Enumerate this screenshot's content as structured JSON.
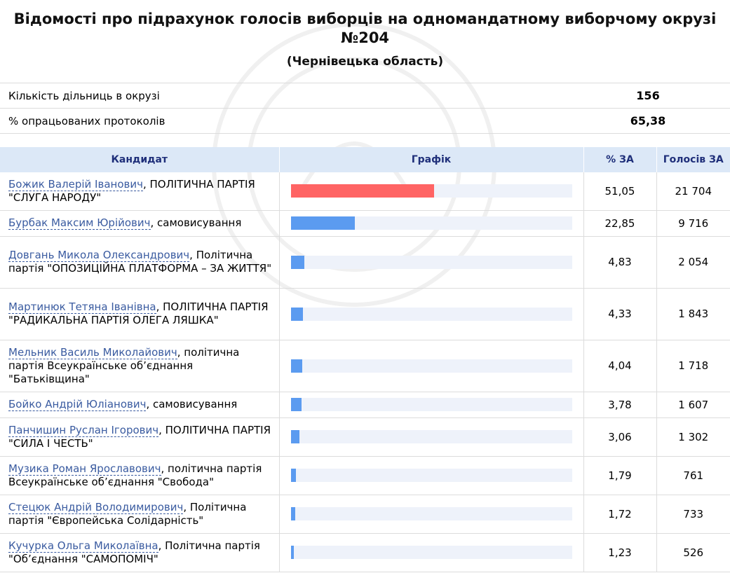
{
  "header": {
    "title": "Відомості про підрахунок голосів виборців на одномандатному виборчому окрузі №204",
    "region": "(Чернівецька область)"
  },
  "summary": [
    {
      "label": "Кількість дільниць в окрузі",
      "value": "156"
    },
    {
      "label": "% опрацьованих протоколів",
      "value": "65,38"
    }
  ],
  "table_headers": {
    "candidate": "Кандидат",
    "chart": "Графік",
    "percent": "% ЗА",
    "votes": "Голосів ЗА"
  },
  "colors": {
    "lead_bar": "#ff6464",
    "bar": "#5b9bf0",
    "track": "#eef2fa",
    "header_bg": "#dce8f7",
    "link": "#3a5ba0"
  },
  "candidates": [
    {
      "name": "Божик Валерій Іванович",
      "party": ", ПОЛІТИЧНА ПАРТІЯ \"СЛУГА НАРОДУ\"",
      "percent": "51,05",
      "votes": "21 704",
      "share": 51.05
    },
    {
      "name": "Бурбак Максим Юрійович",
      "party": ", самовисування",
      "percent": "22,85",
      "votes": "9 716",
      "share": 22.85
    },
    {
      "name": "Довгань Микола Олександрович",
      "party": ", Політична партія \"ОПОЗИЦІЙНА ПЛАТФОРМА – ЗА ЖИТТЯ\"",
      "percent": "4,83",
      "votes": "2 054",
      "share": 4.83
    },
    {
      "name": "Мартинюк Тетяна Іванівна",
      "party": ", ПОЛІТИЧНА ПАРТІЯ \"РАДИКАЛЬНА ПАРТІЯ ОЛЕГА ЛЯШКА\"",
      "percent": "4,33",
      "votes": "1 843",
      "share": 4.33
    },
    {
      "name": "Мельник Василь Миколайович",
      "party": ", політична партія Всеукраїнське об’єднання \"Батьківщина\"",
      "percent": "4,04",
      "votes": "1 718",
      "share": 4.04
    },
    {
      "name": "Бойко Андрій Юліанович",
      "party": ", самовисування",
      "percent": "3,78",
      "votes": "1 607",
      "share": 3.78
    },
    {
      "name": "Панчишин Руслан Ігорович",
      "party": ", ПОЛІТИЧНА ПАРТІЯ \"СИЛА І ЧЕСТЬ\"",
      "percent": "3,06",
      "votes": "1 302",
      "share": 3.06
    },
    {
      "name": "Музика Роман Ярославович",
      "party": ", політична партія Всеукраїнське об’єднання \"Свобода\"",
      "percent": "1,79",
      "votes": "761",
      "share": 1.79
    },
    {
      "name": "Стецюк Андрій Володимирович",
      "party": ", Політична партія \"Європейська Солідарність\"",
      "percent": "1,72",
      "votes": "733",
      "share": 1.72
    },
    {
      "name": "Кучурка Ольга Миколаївна",
      "party": ", Політична партія \"Об’єднання \"САМОПОМІЧ\"",
      "percent": "1,23",
      "votes": "526",
      "share": 1.23
    }
  ]
}
